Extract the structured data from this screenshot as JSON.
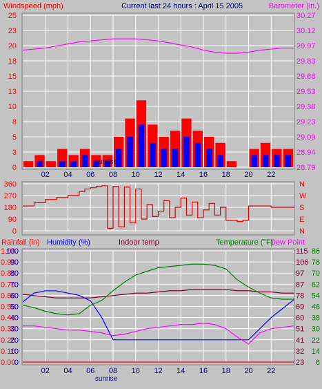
{
  "header": {
    "wind_title": "Windspeed (mph)",
    "period_title": "Current last 24 hours : April 15 2005",
    "baro_title": "Barometer (in.)"
  },
  "bottom_header": {
    "rain_label": "Rainfall (in)",
    "humidity_label": "Humidity (%)",
    "indoor_label": "Indoor temp",
    "temp_label": "Temperature (°F)",
    "dew_label": "Dew Point"
  },
  "sunrise_label": "sunrise",
  "colors": {
    "panel_bg": "#c4c4c4",
    "grid": "#ffffff",
    "wind_gust": "#ff0000",
    "wind_avg": "#0000ff",
    "barometer": "#ff00ff",
    "direction": "#e00000",
    "rain": "#ff0000",
    "humidity": "#0000ff",
    "indoor": "#800033",
    "temperature": "#008000",
    "dewpoint": "#ff00ff"
  },
  "chart_data": [
    {
      "type": "line",
      "name": "wind-barometer",
      "x": [
        0,
        1,
        2,
        3,
        4,
        5,
        6,
        7,
        8,
        9,
        10,
        11,
        12,
        13,
        14,
        15,
        16,
        17,
        18,
        19,
        20,
        21,
        22,
        23,
        24
      ],
      "xticks": [
        "02",
        "04",
        "06",
        "08",
        "10",
        "12",
        "14",
        "16",
        "18",
        "20",
        "22"
      ],
      "xtick_values": [
        2,
        4,
        6,
        8,
        10,
        12,
        14,
        16,
        18,
        20,
        22
      ],
      "left_axis": {
        "label": "Windspeed (mph)",
        "ticks": [
          "25",
          "23",
          "20",
          "18",
          "15",
          "13",
          "10",
          "8",
          "5",
          "3",
          "0"
        ],
        "ylim": [
          0,
          25
        ]
      },
      "right_axis": {
        "label": "Barometer (in.)",
        "ticks": [
          "30.27",
          "30.12",
          "29.97",
          "29.83",
          "29.68",
          "29.53",
          "29.38",
          "29.23",
          "29.09",
          "28.94",
          "28.79"
        ],
        "ylim": [
          28.79,
          30.27
        ]
      },
      "series": [
        {
          "name": "Gust",
          "axis": "left",
          "values": [
            1,
            2,
            1,
            3,
            2,
            3,
            2,
            2,
            5,
            8,
            11,
            7,
            5,
            6,
            8,
            6,
            5,
            4,
            1,
            0,
            3,
            4,
            3,
            3,
            4
          ]
        },
        {
          "name": "Average",
          "axis": "left",
          "values": [
            0,
            1,
            0,
            1,
            1,
            2,
            1,
            1,
            3,
            5,
            7,
            4,
            3,
            3,
            5,
            4,
            3,
            2,
            0,
            0,
            2,
            2,
            2,
            2,
            2
          ]
        },
        {
          "name": "Barometer",
          "axis": "right",
          "values": [
            29.93,
            29.94,
            29.95,
            29.97,
            29.99,
            30.01,
            30.02,
            30.03,
            30.04,
            30.04,
            30.04,
            30.03,
            30.02,
            30.0,
            29.98,
            29.96,
            29.93,
            29.91,
            29.9,
            29.9,
            29.91,
            29.93,
            29.94,
            29.95,
            29.95
          ]
        }
      ]
    },
    {
      "type": "line",
      "name": "wind-direction",
      "x": [
        0,
        1,
        2,
        3,
        4,
        5,
        5.5,
        6,
        6.5,
        7,
        7.5,
        8,
        8.5,
        9,
        9.5,
        10,
        10.5,
        11,
        11.5,
        12,
        12.5,
        13,
        13.5,
        14,
        14.5,
        15,
        15.5,
        16,
        16.5,
        17,
        17.5,
        18,
        19,
        19.5,
        20,
        21,
        22,
        23,
        24
      ],
      "left_axis": {
        "ticks": [
          "360",
          "270",
          "180",
          "90",
          "0"
        ],
        "ylim": [
          0,
          360
        ]
      },
      "right_axis": {
        "ticks": [
          "N",
          "W",
          "S",
          "E",
          "N"
        ]
      },
      "series": [
        {
          "name": "Wind direction",
          "values": [
            190,
            215,
            240,
            255,
            270,
            300,
            320,
            330,
            340,
            345,
            20,
            340,
            30,
            335,
            60,
            320,
            90,
            200,
            110,
            150,
            230,
            100,
            180,
            250,
            120,
            220,
            100,
            160,
            210,
            120,
            180,
            80,
            70,
            80,
            190,
            190,
            180,
            180,
            185
          ]
        }
      ]
    },
    {
      "type": "line",
      "name": "temperature-humidity",
      "x": [
        0,
        1,
        2,
        3,
        4,
        5,
        6,
        7,
        8,
        9,
        10,
        11,
        12,
        13,
        14,
        15,
        16,
        17,
        18,
        19,
        20,
        21,
        22,
        23,
        24
      ],
      "xticks": [
        "02",
        "04",
        "06",
        "08",
        "10",
        "12",
        "14",
        "16",
        "18",
        "20",
        "22"
      ],
      "xtick_values": [
        2,
        4,
        6,
        8,
        10,
        12,
        14,
        16,
        18,
        20,
        22
      ],
      "axes": {
        "rainfall": {
          "label": "Rainfall (in)",
          "ticks": [
            "1.00",
            "0.90",
            "0.80",
            "0.70",
            "0.60",
            "0.50",
            "0.40",
            "0.30",
            "0.20",
            "0.10",
            "0.00"
          ],
          "ylim": [
            0,
            1
          ]
        },
        "humidity": {
          "label": "Humidity (%)",
          "ticks": [
            "100",
            "90",
            "80",
            "70",
            "60",
            "50",
            "40",
            "30",
            "20",
            "10",
            "0"
          ],
          "ylim": [
            0,
            100
          ]
        },
        "temperature": {
          "label": "Temperature (°F)",
          "ticks": [
            "115",
            "106",
            "97",
            "87",
            "78",
            "69",
            "60",
            "51",
            "41",
            "32",
            "23"
          ],
          "ylim": [
            23,
            115
          ]
        },
        "dewpoint": {
          "label": "Dew Point",
          "ticks": [
            "86",
            "78",
            "70",
            "62",
            "54",
            "46",
            "38",
            "30",
            "22",
            "14",
            "6"
          ],
          "ylim": [
            6,
            86
          ]
        }
      },
      "series": [
        {
          "name": "Rainfall",
          "axis": "rainfall",
          "values": [
            0,
            0,
            0,
            0,
            0,
            0,
            0,
            0,
            0,
            0,
            0,
            0,
            0,
            0,
            0,
            0,
            0,
            0,
            0,
            0,
            0,
            0,
            0,
            0,
            0
          ]
        },
        {
          "name": "Humidity",
          "axis": "humidity",
          "values": [
            54,
            62,
            64,
            64,
            62,
            60,
            55,
            40,
            20,
            20,
            20,
            20,
            20,
            20,
            20,
            20,
            20,
            20,
            20,
            20,
            20,
            30,
            40,
            48,
            56
          ]
        },
        {
          "name": "Indoor temp",
          "axis": "temperature",
          "values": [
            79,
            78,
            77,
            76,
            76,
            76,
            76,
            77,
            78,
            79,
            80,
            80,
            81,
            82,
            82,
            83,
            83,
            83,
            83,
            82,
            82,
            81,
            81,
            80,
            80
          ]
        },
        {
          "name": "Temperature",
          "axis": "temperature",
          "values": [
            70,
            68,
            65,
            63,
            62,
            63,
            70,
            74,
            82,
            89,
            95,
            98,
            101,
            102,
            103,
            104,
            104,
            103,
            100,
            91,
            85,
            80,
            76,
            75,
            75
          ]
        },
        {
          "name": "Dew Point",
          "axis": "dewpoint",
          "values": [
            32,
            32,
            31,
            30,
            29,
            29,
            28,
            27,
            25,
            26,
            28,
            30,
            31,
            32,
            33,
            33,
            34,
            33,
            30,
            24,
            19,
            27,
            30,
            31,
            32
          ]
        }
      ]
    }
  ]
}
